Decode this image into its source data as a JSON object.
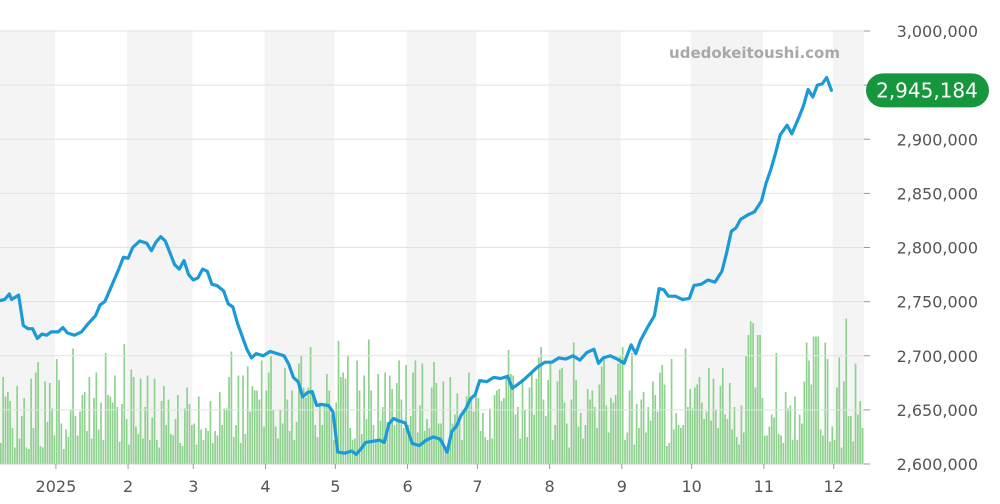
{
  "watermark": "udedokeitoushi.com",
  "chart_data": {
    "type": "line",
    "title": "",
    "xlabel": "",
    "ylabel": "",
    "ylim": [
      2600000,
      3000000
    ],
    "y_ticks": [
      {
        "value": 3000000,
        "label": "3,000,000"
      },
      {
        "value": 2950000,
        "label": ""
      },
      {
        "value": 2900000,
        "label": "2,900,000"
      },
      {
        "value": 2850000,
        "label": "2,850,000"
      },
      {
        "value": 2800000,
        "label": "2,800,000"
      },
      {
        "value": 2750000,
        "label": "2,750,000"
      },
      {
        "value": 2700000,
        "label": "2,700,000"
      },
      {
        "value": 2650000,
        "label": "2,650,000"
      },
      {
        "value": 2600000,
        "label": "2,600,000"
      }
    ],
    "x_range": [
      "2024-12-08",
      "2025-12-14"
    ],
    "x_ticks": [
      {
        "date": "2025-01-01",
        "label": "2025"
      },
      {
        "date": "2025-02-01",
        "label": "2"
      },
      {
        "date": "2025-03-01",
        "label": "3"
      },
      {
        "date": "2025-04-01",
        "label": "4"
      },
      {
        "date": "2025-05-01",
        "label": "5"
      },
      {
        "date": "2025-06-01",
        "label": "6"
      },
      {
        "date": "2025-07-01",
        "label": "7"
      },
      {
        "date": "2025-08-01",
        "label": "8"
      },
      {
        "date": "2025-09-01",
        "label": "9"
      },
      {
        "date": "2025-10-01",
        "label": "10"
      },
      {
        "date": "2025-11-01",
        "label": "11"
      },
      {
        "date": "2025-12-01",
        "label": "12"
      }
    ],
    "current_value_label": "2,945,184",
    "colors": {
      "line": "#1a9ad6",
      "volume": "#8fd18f",
      "badge": "#16973e",
      "band": "#f4f4f4",
      "grid": "#e2e2e2",
      "axis_text": "#555555",
      "watermark": "#a8a8a8"
    },
    "series": [
      {
        "values": [
          [
            "2024-12-08",
            2751000
          ],
          [
            "2024-12-10",
            2752000
          ],
          [
            "2024-12-12",
            2757000
          ],
          [
            "2024-12-13",
            2752000
          ],
          [
            "2024-12-16",
            2756000
          ],
          [
            "2024-12-18",
            2728000
          ],
          [
            "2024-12-20",
            2725000
          ],
          [
            "2024-12-22",
            2725000
          ],
          [
            "2024-12-24",
            2716000
          ],
          [
            "2024-12-26",
            2720000
          ],
          [
            "2024-12-28",
            2719000
          ],
          [
            "2024-12-30",
            2722000
          ],
          [
            "2025-01-02",
            2722000
          ],
          [
            "2025-01-04",
            2726000
          ],
          [
            "2025-01-06",
            2721000
          ],
          [
            "2025-01-09",
            2719000
          ],
          [
            "2025-01-12",
            2722000
          ],
          [
            "2025-01-15",
            2730000
          ],
          [
            "2025-01-18",
            2737000
          ],
          [
            "2025-01-20",
            2747000
          ],
          [
            "2025-01-22",
            2750000
          ],
          [
            "2025-01-24",
            2760000
          ],
          [
            "2025-01-26",
            2770000
          ],
          [
            "2025-01-28",
            2780000
          ],
          [
            "2025-01-30",
            2791000
          ],
          [
            "2025-02-01",
            2790000
          ],
          [
            "2025-02-03",
            2800000
          ],
          [
            "2025-02-06",
            2806000
          ],
          [
            "2025-02-09",
            2804000
          ],
          [
            "2025-02-11",
            2797000
          ],
          [
            "2025-02-13",
            2805000
          ],
          [
            "2025-02-15",
            2810000
          ],
          [
            "2025-02-17",
            2806000
          ],
          [
            "2025-02-19",
            2795000
          ],
          [
            "2025-02-21",
            2784000
          ],
          [
            "2025-02-23",
            2780000
          ],
          [
            "2025-02-25",
            2788000
          ],
          [
            "2025-02-27",
            2775000
          ],
          [
            "2025-03-01",
            2770000
          ],
          [
            "2025-03-03",
            2772000
          ],
          [
            "2025-03-05",
            2780000
          ],
          [
            "2025-03-07",
            2778000
          ],
          [
            "2025-03-09",
            2766000
          ],
          [
            "2025-03-11",
            2765000
          ],
          [
            "2025-03-14",
            2760000
          ],
          [
            "2025-03-16",
            2748000
          ],
          [
            "2025-03-18",
            2745000
          ],
          [
            "2025-03-20",
            2730000
          ],
          [
            "2025-03-22",
            2718000
          ],
          [
            "2025-03-24",
            2706000
          ],
          [
            "2025-03-26",
            2698000
          ],
          [
            "2025-03-28",
            2702000
          ],
          [
            "2025-03-31",
            2700000
          ],
          [
            "2025-04-03",
            2704000
          ],
          [
            "2025-04-06",
            2702000
          ],
          [
            "2025-04-09",
            2700000
          ],
          [
            "2025-04-11",
            2692000
          ],
          [
            "2025-04-13",
            2680000
          ],
          [
            "2025-04-15",
            2676000
          ],
          [
            "2025-04-17",
            2662000
          ],
          [
            "2025-04-19",
            2666000
          ],
          [
            "2025-04-21",
            2667000
          ],
          [
            "2025-04-23",
            2654000
          ],
          [
            "2025-04-25",
            2655000
          ],
          [
            "2025-04-28",
            2654000
          ],
          [
            "2025-04-30",
            2648000
          ],
          [
            "2025-05-02",
            2611000
          ],
          [
            "2025-05-05",
            2610000
          ],
          [
            "2025-05-08",
            2612000
          ],
          [
            "2025-05-10",
            2609000
          ],
          [
            "2025-05-12",
            2614000
          ],
          [
            "2025-05-14",
            2620000
          ],
          [
            "2025-05-17",
            2621000
          ],
          [
            "2025-05-20",
            2622000
          ],
          [
            "2025-05-22",
            2620000
          ],
          [
            "2025-05-24",
            2637000
          ],
          [
            "2025-05-26",
            2642000
          ],
          [
            "2025-05-28",
            2640000
          ],
          [
            "2025-05-31",
            2638000
          ],
          [
            "2025-06-03",
            2619000
          ],
          [
            "2025-06-06",
            2617000
          ],
          [
            "2025-06-09",
            2622000
          ],
          [
            "2025-06-12",
            2625000
          ],
          [
            "2025-06-15",
            2623000
          ],
          [
            "2025-06-18",
            2611000
          ],
          [
            "2025-06-20",
            2630000
          ],
          [
            "2025-06-22",
            2635000
          ],
          [
            "2025-06-24",
            2645000
          ],
          [
            "2025-06-26",
            2651000
          ],
          [
            "2025-06-28",
            2660000
          ],
          [
            "2025-06-30",
            2664000
          ],
          [
            "2025-07-02",
            2677000
          ],
          [
            "2025-07-05",
            2676000
          ],
          [
            "2025-07-08",
            2680000
          ],
          [
            "2025-07-11",
            2679000
          ],
          [
            "2025-07-14",
            2681000
          ],
          [
            "2025-07-16",
            2670000
          ],
          [
            "2025-07-18",
            2673000
          ],
          [
            "2025-07-21",
            2678000
          ],
          [
            "2025-07-24",
            2684000
          ],
          [
            "2025-07-27",
            2690000
          ],
          [
            "2025-07-30",
            2694000
          ],
          [
            "2025-08-02",
            2694000
          ],
          [
            "2025-08-05",
            2698000
          ],
          [
            "2025-08-08",
            2697000
          ],
          [
            "2025-08-11",
            2700000
          ],
          [
            "2025-08-14",
            2696000
          ],
          [
            "2025-08-17",
            2703000
          ],
          [
            "2025-08-20",
            2706000
          ],
          [
            "2025-08-22",
            2693000
          ],
          [
            "2025-08-24",
            2698000
          ],
          [
            "2025-08-27",
            2700000
          ],
          [
            "2025-08-30",
            2697000
          ],
          [
            "2025-09-02",
            2693000
          ],
          [
            "2025-09-05",
            2710000
          ],
          [
            "2025-09-07",
            2702000
          ],
          [
            "2025-09-09",
            2714000
          ],
          [
            "2025-09-12",
            2726000
          ],
          [
            "2025-09-15",
            2737000
          ],
          [
            "2025-09-17",
            2762000
          ],
          [
            "2025-09-19",
            2761000
          ],
          [
            "2025-09-21",
            2755000
          ],
          [
            "2025-09-24",
            2755000
          ],
          [
            "2025-09-27",
            2752000
          ],
          [
            "2025-09-30",
            2753000
          ],
          [
            "2025-10-02",
            2765000
          ],
          [
            "2025-10-05",
            2766000
          ],
          [
            "2025-10-08",
            2770000
          ],
          [
            "2025-10-11",
            2768000
          ],
          [
            "2025-10-14",
            2778000
          ],
          [
            "2025-10-16",
            2795000
          ],
          [
            "2025-10-18",
            2815000
          ],
          [
            "2025-10-20",
            2818000
          ],
          [
            "2025-10-22",
            2826000
          ],
          [
            "2025-10-25",
            2830000
          ],
          [
            "2025-10-28",
            2833000
          ],
          [
            "2025-10-31",
            2843000
          ],
          [
            "2025-11-02",
            2860000
          ],
          [
            "2025-11-04",
            2872000
          ],
          [
            "2025-11-06",
            2887000
          ],
          [
            "2025-11-08",
            2904000
          ],
          [
            "2025-11-11",
            2913000
          ],
          [
            "2025-11-13",
            2905000
          ],
          [
            "2025-11-16",
            2920000
          ],
          [
            "2025-11-18",
            2931000
          ],
          [
            "2025-11-20",
            2946000
          ],
          [
            "2025-11-22",
            2939000
          ],
          [
            "2025-11-24",
            2950000
          ],
          [
            "2025-11-26",
            2951000
          ],
          [
            "2025-11-28",
            2957000
          ],
          [
            "2025-11-30",
            2945184
          ]
        ]
      }
    ],
    "volume": {
      "description": "relative trading volume bars (unitless, 0-100)",
      "start": "2024-12-08",
      "step_days": 1,
      "values": [
        14,
        58,
        45,
        48,
        42,
        24,
        11,
        52,
        17,
        32,
        44,
        11,
        10,
        57,
        24,
        61,
        68,
        12,
        11,
        55,
        28,
        54,
        37,
        19,
        70,
        56,
        27,
        10,
        23,
        18,
        36,
        77,
        32,
        19,
        35,
        46,
        48,
        22,
        58,
        17,
        44,
        61,
        23,
        41,
        16,
        74,
        46,
        45,
        41,
        59,
        38,
        15,
        40,
        80,
        30,
        13,
        63,
        58,
        25,
        20,
        57,
        17,
        38,
        59,
        16,
        31,
        57,
        16,
        11,
        42,
        52,
        26,
        43,
        20,
        19,
        30,
        46,
        14,
        12,
        37,
        51,
        40,
        26,
        27,
        13,
        45,
        23,
        16,
        24,
        22,
        42,
        14,
        22,
        19,
        48,
        26,
        37,
        37,
        58,
        75,
        18,
        26,
        59,
        14,
        59,
        20,
        65,
        35,
        52,
        49,
        49,
        43,
        69,
        25,
        49,
        61,
        72,
        36,
        25,
        17,
        36,
        27,
        64,
        43,
        22,
        49,
        16,
        28,
        67,
        72,
        51,
        44,
        51,
        78,
        49,
        26,
        18,
        41,
        26,
        40,
        60,
        49,
        33,
        16,
        41,
        82,
        58,
        61,
        57,
        72,
        24,
        16,
        17,
        69,
        49,
        20,
        59,
        30,
        83,
        49,
        26,
        17,
        60,
        29,
        38,
        61,
        28,
        59,
        50,
        26,
        54,
        69,
        43,
        24,
        66,
        26,
        32,
        61,
        69,
        21,
        39,
        67,
        22,
        30,
        24,
        51,
        68,
        54,
        27,
        27,
        55,
        11,
        13,
        58,
        27,
        33,
        47,
        29,
        16,
        35,
        45,
        61,
        43,
        35,
        48,
        44,
        22,
        34,
        18,
        16,
        37,
        17,
        46,
        49,
        50,
        42,
        44,
        59,
        76,
        60,
        59,
        33,
        38,
        17,
        57,
        36,
        18,
        51,
        61,
        33,
        57,
        71,
        78,
        43,
        32,
        56,
        67,
        16,
        26,
        55,
        63,
        64,
        41,
        27,
        11,
        43,
        81,
        56,
        25,
        34,
        17,
        26,
        50,
        43,
        49,
        38,
        24,
        53,
        65,
        71,
        39,
        21,
        44,
        41,
        46,
        67,
        72,
        78,
        16,
        21,
        49,
        74,
        13,
        40,
        24,
        43,
        48,
        21,
        38,
        29,
        55,
        46,
        35,
        61,
        66,
        53,
        12,
        14,
        70,
        23,
        34,
        26,
        24,
        26,
        77,
        38,
        50,
        37,
        51,
        53,
        58,
        41,
        30,
        35,
        64,
        29,
        57,
        36,
        24,
        52,
        64,
        33,
        30,
        54,
        23,
        38,
        18,
        13,
        39,
        21,
        72,
        86,
        95,
        94,
        51,
        86,
        86,
        44,
        19,
        19,
        25,
        33,
        31,
        74,
        20,
        19,
        14,
        48,
        37,
        39,
        16,
        45,
        16,
        33,
        27,
        55,
        81,
        69,
        53,
        85,
        85,
        85,
        23,
        19,
        81,
        70,
        15,
        25,
        16,
        51,
        71,
        11,
        55,
        97,
        32,
        32,
        15,
        67,
        33,
        42,
        24,
        27,
        35,
        36,
        26,
        28,
        39,
        11,
        17,
        42,
        30
      ]
    }
  }
}
